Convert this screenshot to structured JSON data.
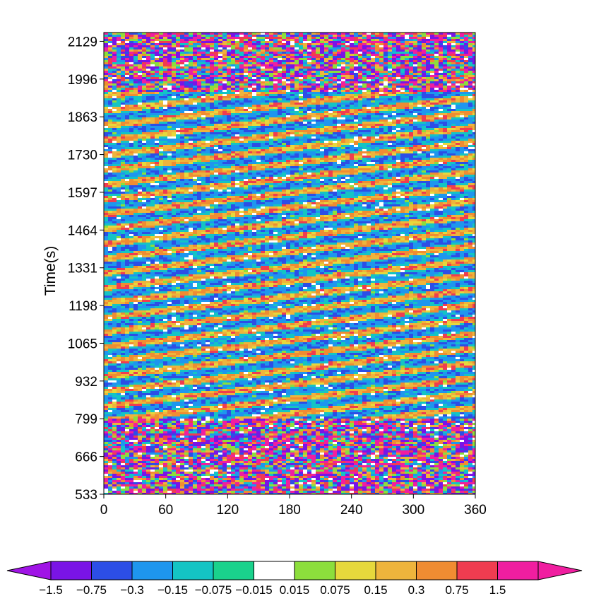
{
  "chart_data": {
    "type": "heatmap",
    "title": "",
    "xlabel": "",
    "ylabel": "Time(s)",
    "xlim": [
      0,
      360
    ],
    "ylim": [
      533,
      2160
    ],
    "x_ticks": [
      "0",
      "60",
      "120",
      "180",
      "240",
      "300",
      "360"
    ],
    "y_ticks": [
      "533",
      "666",
      "799",
      "932",
      "1065",
      "1198",
      "1331",
      "1464",
      "1597",
      "1730",
      "1863",
      "1996",
      "2129"
    ],
    "regions": [
      {
        "name": "noise",
        "t_start": 533,
        "t_end": 799
      },
      {
        "name": "striped",
        "t_start": 799,
        "t_end": 1950
      },
      {
        "name": "noise",
        "t_start": 1950,
        "t_end": 2160
      }
    ],
    "colorbar": {
      "orientation": "horizontal",
      "extend": "both",
      "boundaries": [
        "-1.5",
        "-0.75",
        "-0.3",
        "-0.15",
        "-0.075",
        "-0.015",
        "0.015",
        "0.075",
        "0.15",
        "0.3",
        "0.75",
        "1.5"
      ],
      "colors": [
        "#7a14e6",
        "#2c4ee6",
        "#1e96ee",
        "#14c4c4",
        "#1ad28c",
        "#ffffff",
        "#8cde3c",
        "#e6d83c",
        "#eeb43c",
        "#f08c32",
        "#f03c50",
        "#f01ea0"
      ],
      "under_color": "#a014e6",
      "over_color": "#f01ea0"
    }
  }
}
